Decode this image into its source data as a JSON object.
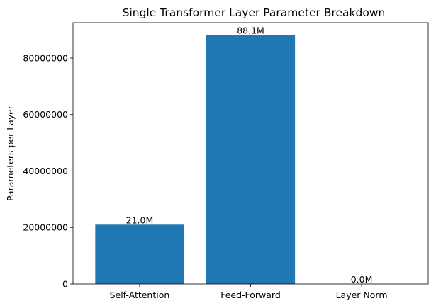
{
  "chart_data": {
    "type": "bar",
    "title": "Single Transformer Layer Parameter Breakdown",
    "xlabel": "",
    "ylabel": "Parameters per Layer",
    "categories": [
      "Self-Attention",
      "Feed-Forward",
      "Layer Norm"
    ],
    "values": [
      20990000,
      88120000,
      3072
    ],
    "data_labels": [
      "21.0M",
      "88.1M",
      "0.0M"
    ],
    "yticks": [
      0,
      20000000,
      40000000,
      60000000,
      80000000
    ],
    "ytick_labels": [
      "0",
      "20000000",
      "40000000",
      "60000000",
      "80000000"
    ],
    "ylim": [
      0,
      92526000
    ],
    "grid": false,
    "bar_color": "#1f77b4"
  }
}
